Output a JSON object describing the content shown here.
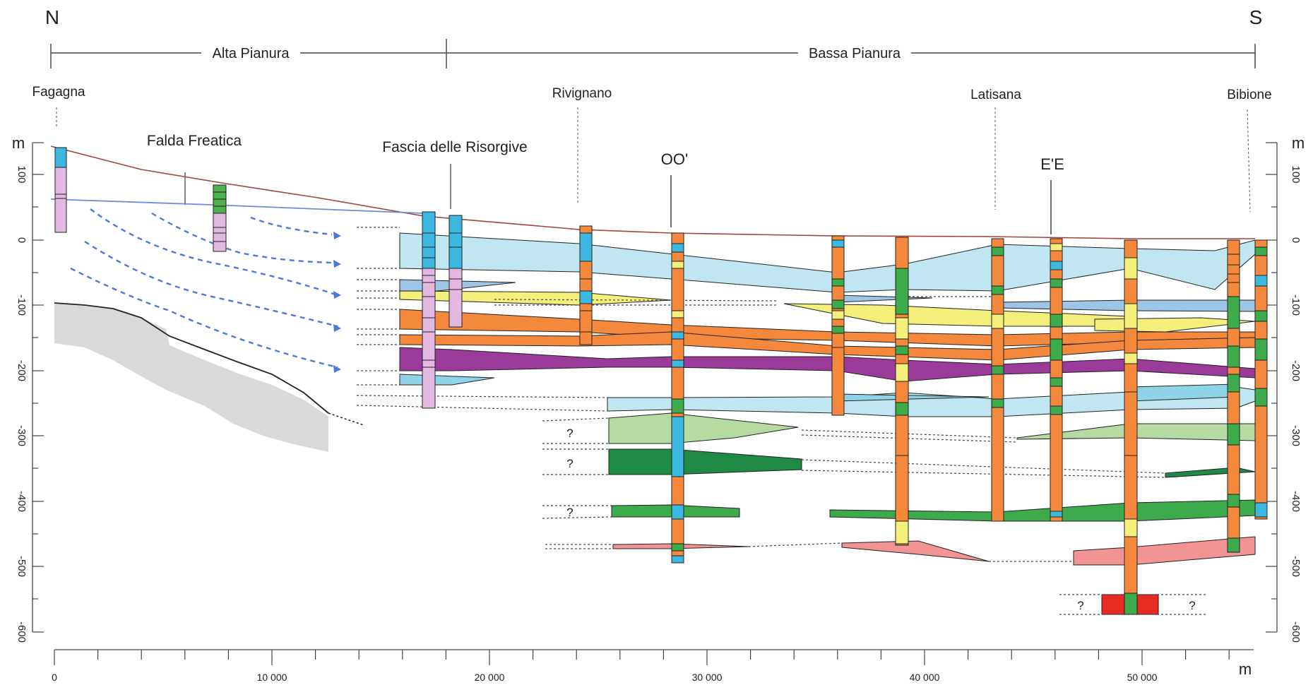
{
  "compass": {
    "north": "N",
    "south": "S"
  },
  "zones": {
    "alta": "Alta Pianura",
    "bassa": "Bassa Pianura"
  },
  "localities": {
    "fagagna": "Fagagna",
    "rivignano": "Rivignano",
    "latisana": "Latisana",
    "bibione": "Bibione"
  },
  "features": {
    "falda": "Falda Freatica",
    "risorgive": "Fascia delle Risorgive",
    "oo": "OO'",
    "ee": "E'E"
  },
  "depth_axis": {
    "unit": "m",
    "ticks": [
      "100",
      "0",
      "-100",
      "-200",
      "-300",
      "-400",
      "-500",
      "-600"
    ]
  },
  "distance_axis": {
    "unit": "m",
    "ticks": [
      "0",
      "10 000",
      "20 000",
      "30 000",
      "40 000",
      "50 000"
    ]
  },
  "unknown_marker": "?",
  "colors": {
    "light_blue": "#bfe6f1",
    "medium_blue": "#9cc5e6",
    "yellow": "#f3ef7a",
    "orange": "#f4883c",
    "purple": "#9a3b9a",
    "cyan": "#8fd3e9",
    "pale_green": "#b5dba3",
    "dark_green": "#1f8a44",
    "green": "#3daa4b",
    "salmon": "#f29494",
    "red": "#e82a24",
    "grey_basement": "#d9d9d9",
    "topography": "#a0443c",
    "water_table": "#6a8fd8",
    "flow_arrows": "#4b7ad6"
  }
}
